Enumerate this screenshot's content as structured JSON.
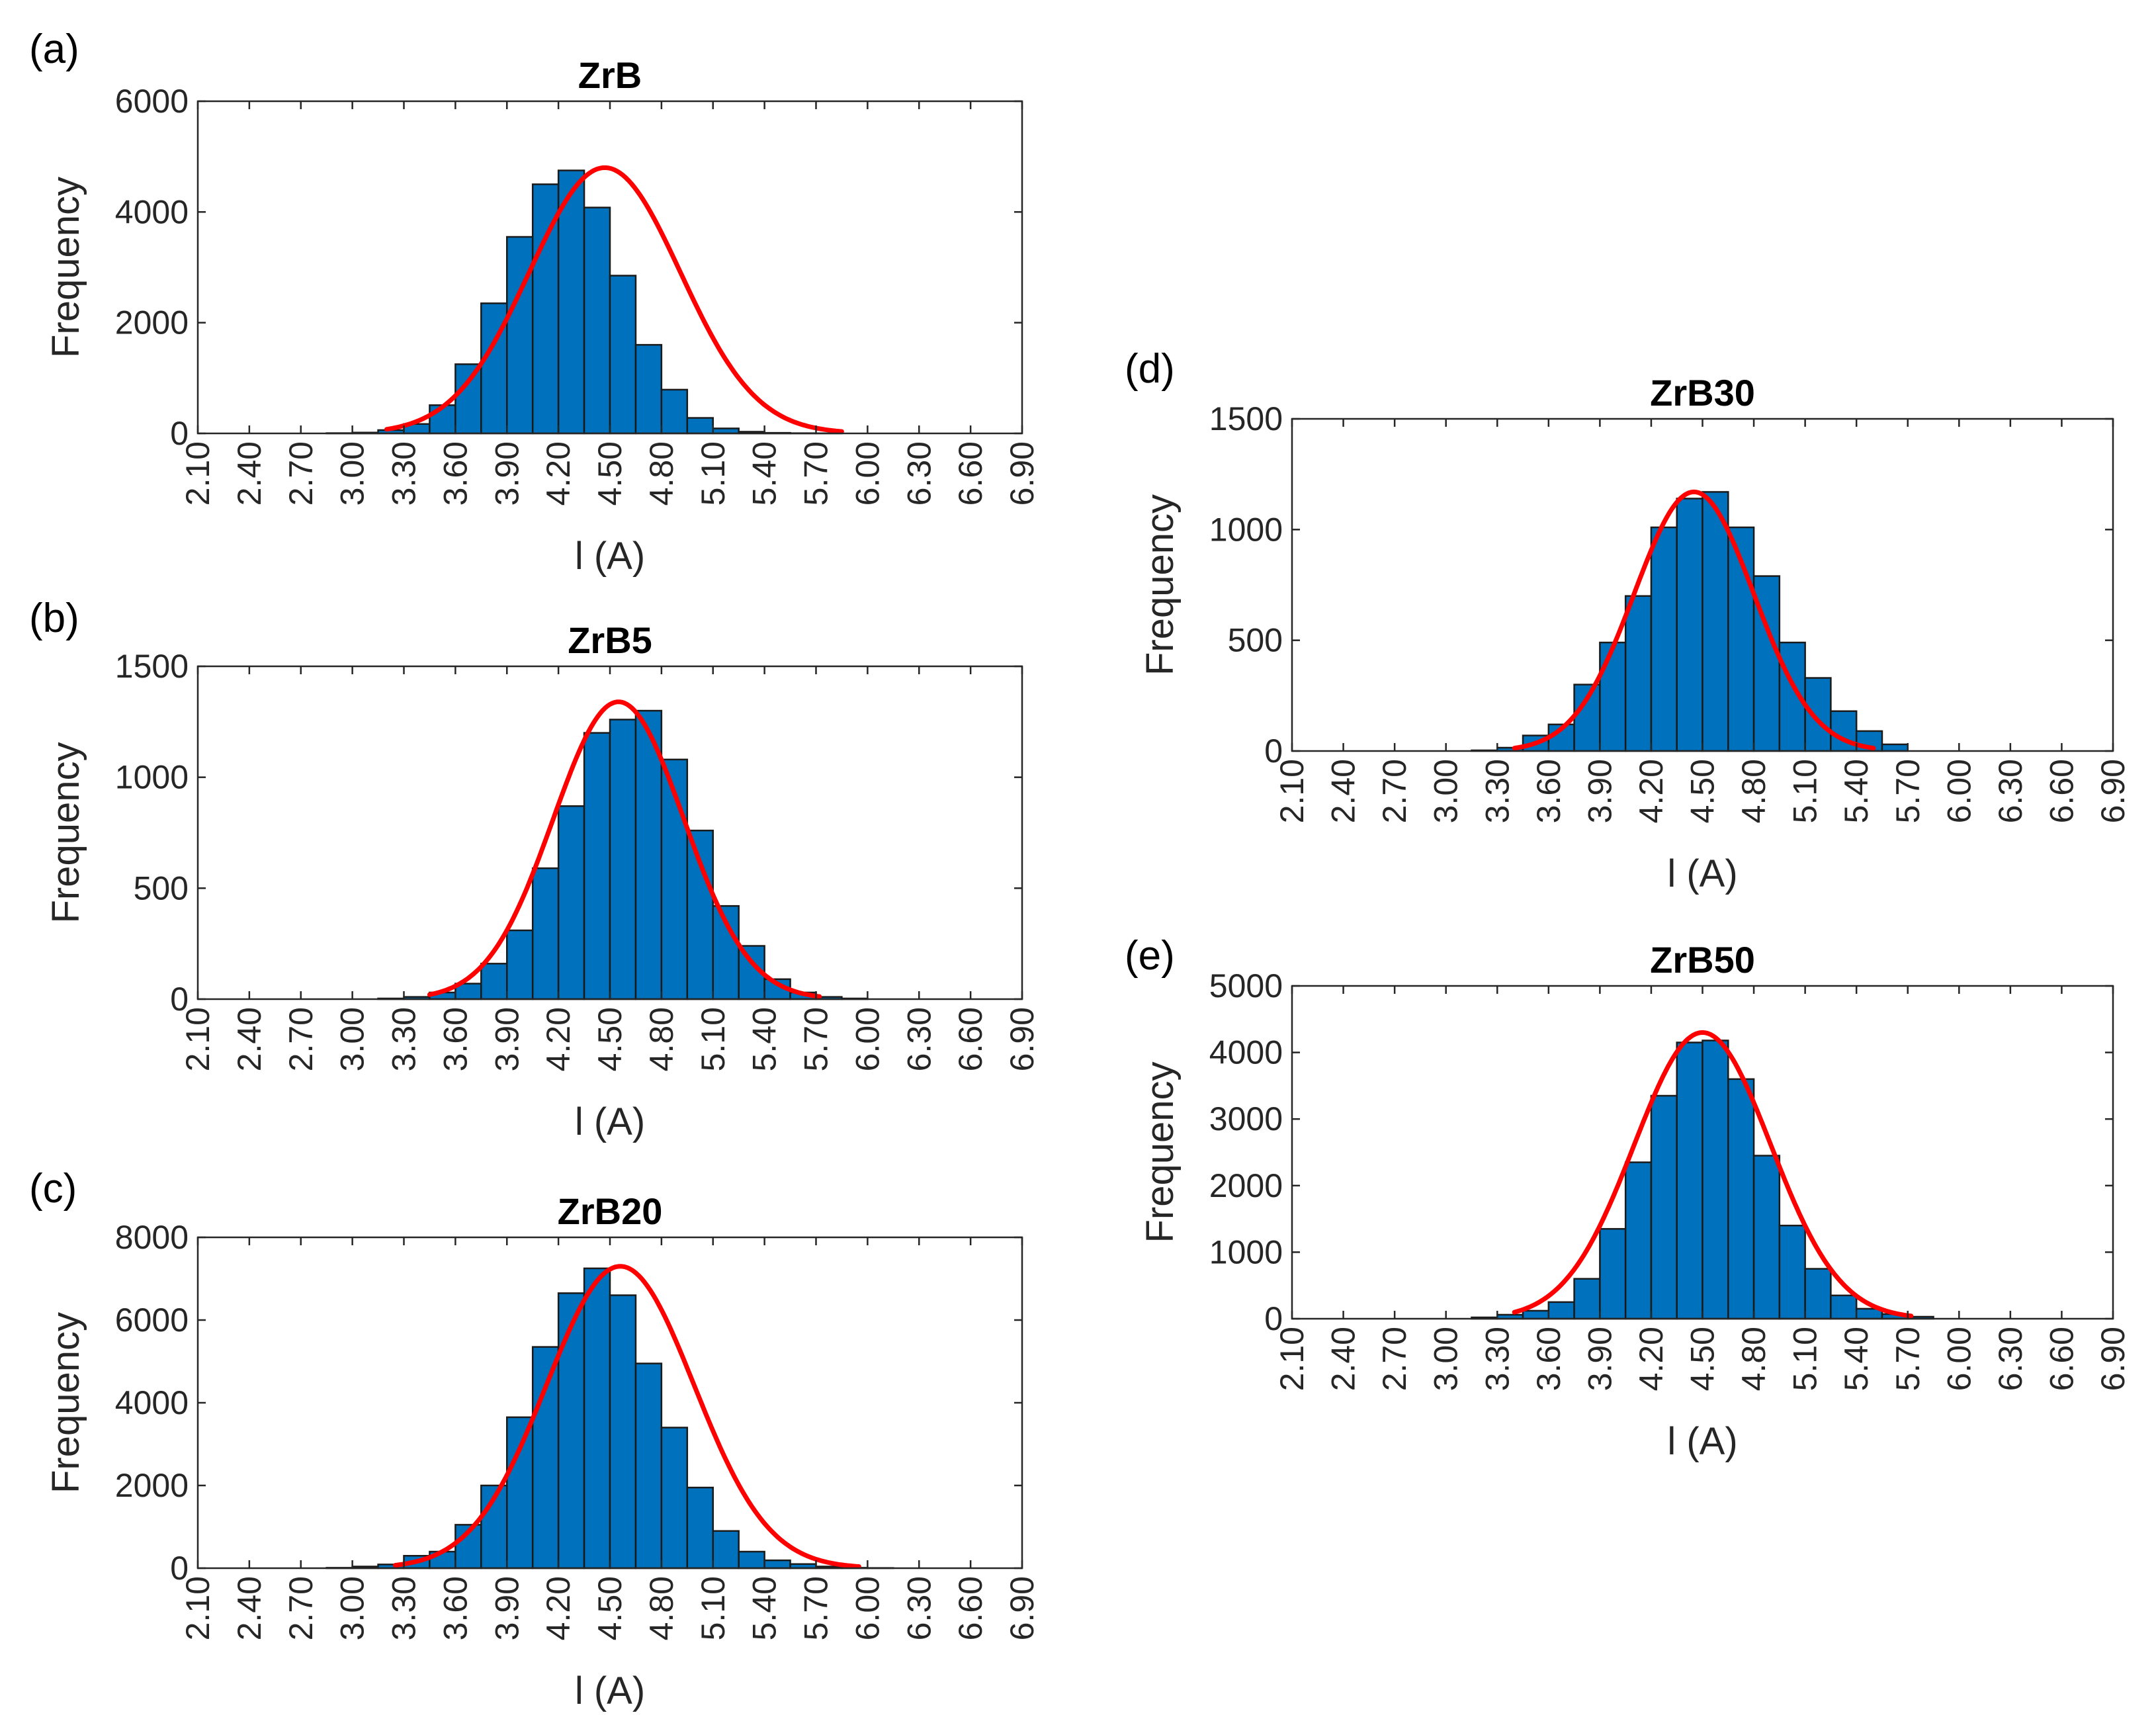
{
  "figure": {
    "colors": {
      "bar": "#0072BD",
      "fit": "#FF0000",
      "axis": "#262626"
    }
  },
  "chart_data": [
    {
      "type": "bar",
      "panel_label": "(a)",
      "title": "ZrB",
      "xlabel": "l (A)",
      "ylabel": "Frequency",
      "ylim": [
        0,
        6000
      ],
      "yticks": [
        "0",
        "2000",
        "4000",
        "6000"
      ],
      "xlim": [
        2.1,
        6.9
      ],
      "xticks": [
        "2.10",
        "2.40",
        "2.70",
        "3.00",
        "3.30",
        "3.60",
        "3.90",
        "4.20",
        "4.50",
        "4.80",
        "5.10",
        "5.40",
        "5.70",
        "6.00",
        "6.30",
        "6.60",
        "6.90"
      ],
      "bin_width": 0.15,
      "series": [
        {
          "name": "histogram",
          "x": [
            2.925,
            3.075,
            3.225,
            3.375,
            3.525,
            3.675,
            3.825,
            3.975,
            4.125,
            4.275,
            4.425,
            4.575,
            4.725,
            4.875,
            5.025,
            5.175,
            5.325,
            5.475,
            5.625,
            5.775,
            5.925,
            6.075
          ],
          "values": [
            5,
            15,
            60,
            170,
            510,
            1250,
            2350,
            3550,
            4500,
            4750,
            4080,
            2850,
            1600,
            790,
            280,
            90,
            30,
            10,
            4,
            2,
            0,
            0
          ]
        },
        {
          "name": "normal fit",
          "mean": 4.47,
          "sd": 0.44,
          "peak": 4800,
          "range": [
            3.2,
            5.85
          ]
        }
      ]
    },
    {
      "type": "bar",
      "panel_label": "(b)",
      "title": "ZrB5",
      "xlabel": "l (A)",
      "ylabel": "Frequency",
      "ylim": [
        0,
        1500
      ],
      "yticks": [
        "0",
        "500",
        "1000",
        "1500"
      ],
      "xlim": [
        2.1,
        6.9
      ],
      "xticks": [
        "2.10",
        "2.40",
        "2.70",
        "3.00",
        "3.30",
        "3.60",
        "3.90",
        "4.20",
        "4.50",
        "4.80",
        "5.10",
        "5.40",
        "5.70",
        "6.00",
        "6.30",
        "6.60",
        "6.90"
      ],
      "bin_width": 0.15,
      "series": [
        {
          "name": "histogram",
          "x": [
            3.225,
            3.375,
            3.525,
            3.675,
            3.825,
            3.975,
            4.125,
            4.275,
            4.425,
            4.575,
            4.725,
            4.875,
            5.025,
            5.175,
            5.325,
            5.475,
            5.625,
            5.775,
            5.925
          ],
          "values": [
            3,
            10,
            30,
            70,
            160,
            310,
            590,
            870,
            1200,
            1260,
            1300,
            1080,
            760,
            420,
            240,
            90,
            30,
            10,
            3
          ]
        },
        {
          "name": "normal fit",
          "mean": 4.55,
          "sd": 0.38,
          "peak": 1340,
          "range": [
            3.45,
            5.72
          ]
        }
      ]
    },
    {
      "type": "bar",
      "panel_label": "(c)",
      "title": "ZrB20",
      "xlabel": "l (A)",
      "ylabel": "Frequency",
      "ylim": [
        0,
        8000
      ],
      "yticks": [
        "0",
        "2000",
        "4000",
        "6000",
        "8000"
      ],
      "xlim": [
        2.1,
        6.9
      ],
      "xticks": [
        "2.10",
        "2.40",
        "2.70",
        "3.00",
        "3.30",
        "3.60",
        "3.90",
        "4.20",
        "4.50",
        "4.80",
        "5.10",
        "5.40",
        "5.70",
        "6.00",
        "6.30",
        "6.60",
        "6.90"
      ],
      "bin_width": 0.15,
      "series": [
        {
          "name": "histogram",
          "x": [
            2.925,
            3.075,
            3.225,
            3.375,
            3.525,
            3.675,
            3.825,
            3.975,
            4.125,
            4.275,
            4.425,
            4.575,
            4.725,
            4.875,
            5.025,
            5.175,
            5.325,
            5.475,
            5.625,
            5.775,
            5.925,
            6.075
          ],
          "values": [
            10,
            40,
            90,
            300,
            400,
            1050,
            2000,
            3650,
            5350,
            6650,
            7250,
            6600,
            4950,
            3400,
            1950,
            900,
            400,
            190,
            100,
            40,
            10,
            5
          ]
        },
        {
          "name": "normal fit",
          "mean": 4.56,
          "sd": 0.43,
          "peak": 7300,
          "range": [
            3.25,
            5.95
          ]
        }
      ]
    },
    {
      "type": "bar",
      "panel_label": "(d)",
      "title": "ZrB30",
      "xlabel": "l (A)",
      "ylabel": "Frequency",
      "ylim": [
        0,
        1500
      ],
      "yticks": [
        "0",
        "500",
        "1000",
        "1500"
      ],
      "xlim": [
        2.1,
        6.9
      ],
      "xticks": [
        "2.10",
        "2.40",
        "2.70",
        "3.00",
        "3.30",
        "3.60",
        "3.90",
        "4.20",
        "4.50",
        "4.80",
        "5.10",
        "5.40",
        "5.70",
        "6.00",
        "6.30",
        "6.60",
        "6.90"
      ],
      "bin_width": 0.15,
      "series": [
        {
          "name": "histogram",
          "x": [
            3.225,
            3.375,
            3.525,
            3.675,
            3.825,
            3.975,
            4.125,
            4.275,
            4.425,
            4.575,
            4.725,
            4.875,
            5.025,
            5.175,
            5.325,
            5.475,
            5.625
          ],
          "values": [
            3,
            15,
            70,
            120,
            300,
            490,
            700,
            1010,
            1140,
            1170,
            1010,
            790,
            490,
            330,
            180,
            90,
            30
          ]
        },
        {
          "name": "normal fit",
          "mean": 4.45,
          "sd": 0.35,
          "peak": 1170,
          "range": [
            3.4,
            5.5
          ]
        }
      ]
    },
    {
      "type": "bar",
      "panel_label": "(e)",
      "title": "ZrB50",
      "xlabel": "l (A)",
      "ylabel": "Frequency",
      "ylim": [
        0,
        5000
      ],
      "yticks": [
        "0",
        "1000",
        "2000",
        "3000",
        "4000",
        "5000"
      ],
      "xlim": [
        2.1,
        6.9
      ],
      "xticks": [
        "2.10",
        "2.40",
        "2.70",
        "3.00",
        "3.30",
        "3.60",
        "3.90",
        "4.20",
        "4.50",
        "4.80",
        "5.10",
        "5.40",
        "5.70",
        "6.00",
        "6.30",
        "6.60",
        "6.90"
      ],
      "bin_width": 0.15,
      "series": [
        {
          "name": "histogram",
          "x": [
            3.225,
            3.375,
            3.525,
            3.675,
            3.825,
            3.975,
            4.125,
            4.275,
            4.425,
            4.575,
            4.725,
            4.875,
            5.025,
            5.175,
            5.325,
            5.475,
            5.625,
            5.775
          ],
          "values": [
            20,
            60,
            120,
            250,
            600,
            1350,
            2350,
            3350,
            4150,
            4180,
            3600,
            2450,
            1400,
            750,
            350,
            150,
            70,
            30
          ]
        },
        {
          "name": "normal fit",
          "mean": 4.5,
          "sd": 0.4,
          "peak": 4300,
          "range": [
            3.4,
            5.72
          ]
        }
      ]
    }
  ]
}
